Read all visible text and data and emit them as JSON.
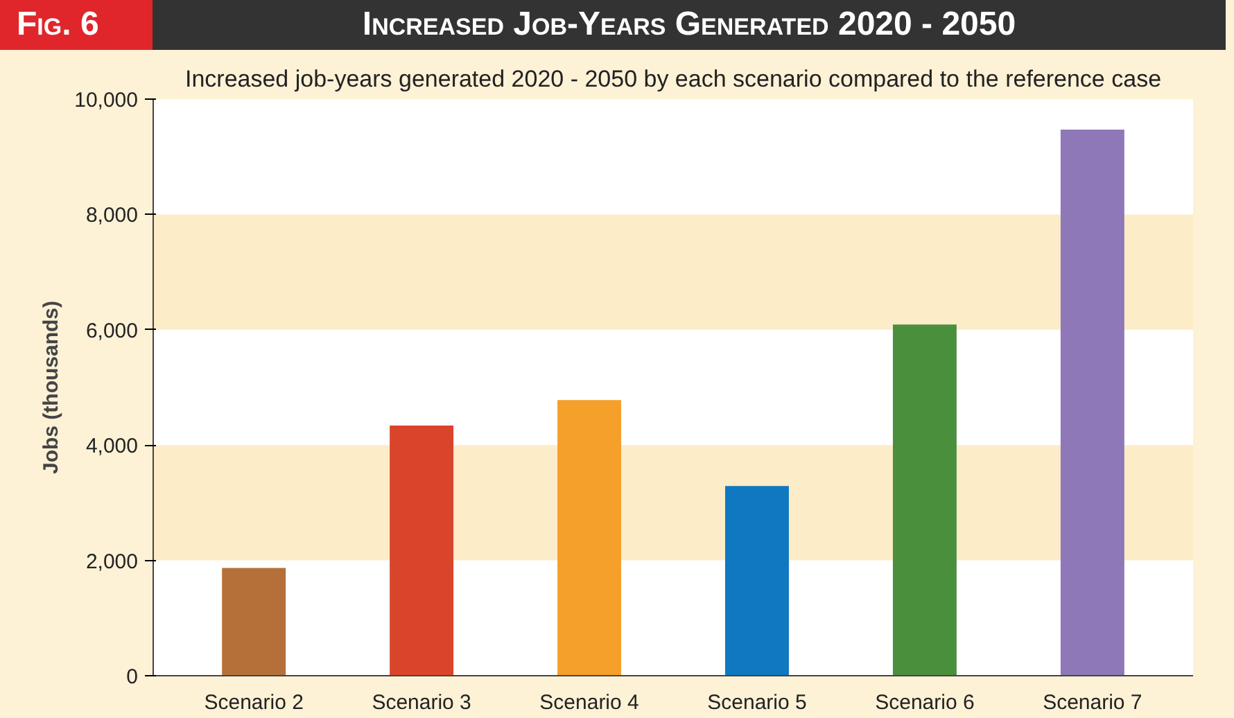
{
  "chart_data": {
    "type": "bar",
    "title": "Increased Job-Years Generated 2020 - 2050",
    "subtitle": "Increased job-years generated 2020 - 2050 by each scenario compared to the reference case",
    "annotations": [
      "Fig. 6"
    ],
    "ylabel": "Jobs (thousands)",
    "categories": [
      "Scenario 2",
      "Scenario 3",
      "Scenario 4",
      "Scenario 5",
      "Scenario 6",
      "Scenario 7"
    ],
    "values": [
      1870,
      4340,
      4780,
      3290,
      6090,
      9470
    ],
    "colors": [
      "#b5703a",
      "#d9452b",
      "#f5a02a",
      "#0f78c0",
      "#4a8f3c",
      "#8e78b8"
    ],
    "ylim": [
      0,
      10000
    ],
    "yticks": [
      {
        "value": 0,
        "label": "0"
      },
      {
        "value": 2000,
        "label": "2,000"
      },
      {
        "value": 4000,
        "label": "4,000"
      },
      {
        "value": 6000,
        "label": "6,000"
      },
      {
        "value": 8000,
        "label": "8,000"
      },
      {
        "value": 10000,
        "label": "10,000"
      }
    ],
    "bands": [
      {
        "axis": "y",
        "from": 2000,
        "to": 4000,
        "color": "#fdecc8"
      },
      {
        "axis": "y",
        "from": 6000,
        "to": 8000,
        "color": "#fdecc8"
      }
    ]
  }
}
